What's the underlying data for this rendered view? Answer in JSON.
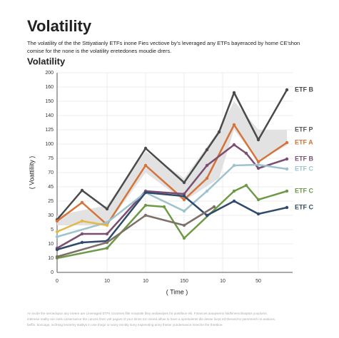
{
  "chart_data": {
    "type": "line",
    "title": "Volatility",
    "subtitle": [
      "The volatility of the the Sttiyatianly ETFs inone Fies vectiove by's leveraged any ETFs bayeraced by home CE'shon",
      "comise for the none is the volatility eretedones moudie drers."
    ],
    "chart_title": "Volatility",
    "ylabel": "( Voattiliity )",
    "xlabel": "( Time )",
    "footer": [
      "An incde the seroedupur any rneere are Leveraged ETFs cocomes filte noopotle bley andaealyes for pustiface els. Finances aoaqisems fuldhinemolinaptos youdoms.",
      "intenese reallty are mels carsernance the cances their volt pagws of your times toc onned alhas to have a sprelodents dle desse facpt ed therand to parsenenh ns arations.",
      "beffin. boncage, incfrsng lennemy stailtys in one thego or wony ennitty sony expennting anny theser yundemance meeche the threttioe."
    ],
    "xlim": [
      0,
      330
    ],
    "ylim": [
      0,
      140
    ],
    "xticks": [
      0,
      {
        "value": 70,
        "label": "10"
      },
      {
        "value": 124,
        "label": "10"
      },
      {
        "value": 178,
        "label": "150"
      },
      {
        "value": 232,
        "label": "10"
      },
      {
        "value": 282,
        "label": "50"
      }
    ],
    "yticks": [
      0,
      {
        "value": 10,
        "label": "10"
      },
      {
        "value": 20,
        "label": "10"
      },
      {
        "value": 30,
        "label": "5"
      },
      {
        "value": 40,
        "label": "30"
      },
      {
        "value": 50,
        "label": "25"
      },
      {
        "value": 60,
        "label": "45"
      },
      {
        "value": 70,
        "label": "70"
      },
      {
        "value": 80,
        "label": "75"
      },
      {
        "value": 90,
        "label": "100"
      },
      {
        "value": 100,
        "label": "125"
      },
      {
        "value": 110,
        "label": "140"
      },
      {
        "value": 120,
        "label": "150"
      },
      {
        "value": 130,
        "label": "160"
      },
      {
        "value": 140,
        "label": "200"
      }
    ],
    "grid": true,
    "band": {
      "name": "ETF P",
      "color": "#e2e2e2",
      "x": [
        0,
        70,
        124,
        178,
        227,
        248,
        282,
        322
      ],
      "upper": [
        40,
        47,
        85,
        66,
        100,
        120,
        100,
        100
      ],
      "lower": [
        33,
        33,
        70,
        50,
        66,
        100,
        78,
        89
      ]
    },
    "series": [
      {
        "name": "ETF B",
        "color": "#4a4a4a",
        "x": [
          0,
          35,
          70,
          124,
          178,
          210,
          227,
          248,
          282,
          322
        ],
        "values": [
          37,
          57.5,
          44.5,
          87,
          63,
          86,
          98.5,
          126,
          93,
          128
        ]
      },
      {
        "name": "ETF A",
        "color": "#d4733a",
        "x": [
          0,
          35,
          70,
          124,
          178,
          210,
          248,
          282,
          322
        ],
        "values": [
          36,
          49,
          33.5,
          75,
          51,
          66,
          103.5,
          77.5,
          91
        ]
      },
      {
        "name": "ETF B",
        "color": "#7a4f72",
        "x": [
          0,
          35,
          70,
          124,
          178,
          210,
          248,
          265,
          282,
          322
        ],
        "values": [
          17,
          27,
          27,
          57,
          55,
          75,
          89.5,
          83.5,
          73,
          79.5
        ]
      },
      {
        "name": "ETF C",
        "color": "#9ec3cf",
        "x": [
          0,
          70,
          124,
          178,
          210,
          248,
          282,
          322
        ],
        "values": [
          25,
          35,
          56,
          43,
          57,
          75,
          75.5,
          72.5
        ]
      },
      {
        "name": "ETF C",
        "color": "#6e9a48",
        "x": [
          0,
          70,
          124,
          150,
          178,
          248,
          265,
          282,
          322
        ],
        "values": [
          10,
          17,
          47,
          46,
          24,
          57,
          61,
          51,
          57
        ]
      },
      {
        "name": "ETF C",
        "color": "#2f4a6b",
        "x": [
          0,
          35,
          70,
          124,
          178,
          210,
          248,
          282,
          322
        ],
        "values": [
          16,
          21,
          22,
          56,
          53.5,
          40,
          50,
          41,
          45.5
        ]
      },
      {
        "color": "#e1b84c",
        "x": [
          0,
          35,
          70
        ],
        "values": [
          28.5,
          36,
          33
        ]
      },
      {
        "color": "#7d7068",
        "x": [
          0,
          70,
          124,
          178,
          220
        ],
        "values": [
          11,
          21,
          40,
          33,
          46
        ]
      }
    ]
  }
}
